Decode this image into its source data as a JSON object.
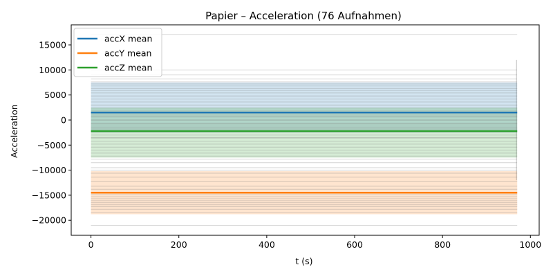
{
  "chart_data": {
    "type": "line",
    "title": "Papier – Acceleration (76 Aufnahmen)",
    "xlabel": "t (s)",
    "ylabel": "Acceleration",
    "xlim": [
      -45,
      1020
    ],
    "ylim": [
      -23000,
      19000
    ],
    "x_ticks": [
      0,
      200,
      400,
      600,
      800,
      1000
    ],
    "y_ticks": [
      -20000,
      -15000,
      -10000,
      -5000,
      0,
      5000,
      10000,
      15000
    ],
    "x_range": [
      0,
      970
    ],
    "legend_position": "top-left",
    "grid": false,
    "series": [
      {
        "name": "accX mean",
        "color": "#1f77b4",
        "mean": 1500,
        "band": [
          -2500,
          7500
        ],
        "recordings": [
          -3500,
          -2200,
          -1500,
          -800,
          0,
          600,
          1200,
          1800,
          2400,
          3000,
          3600,
          4200,
          4800,
          5400,
          5900,
          6300,
          6800,
          7200,
          7600,
          8200,
          9000,
          10000,
          17000
        ]
      },
      {
        "name": "accY mean",
        "color": "#ff7f0e",
        "mean": -14500,
        "band": [
          -18800,
          -10200
        ],
        "recordings": [
          -21000,
          -18500,
          -17800,
          -17300,
          -16900,
          -16500,
          -16100,
          -15700,
          -15300,
          -14900,
          -14400,
          -13800,
          -13200,
          -12300,
          -11400,
          -10600,
          -10000
        ]
      },
      {
        "name": "accZ mean",
        "color": "#2ca02c",
        "mean": -2200,
        "band": [
          -7500,
          2500
        ],
        "recordings": [
          -9500,
          -8500,
          -7800,
          -7200,
          -6600,
          -6000,
          -5400,
          -4800,
          -4200,
          -3600,
          -3000,
          -2400,
          -1800,
          -1200,
          -600,
          0,
          800,
          1600
        ]
      }
    ]
  }
}
